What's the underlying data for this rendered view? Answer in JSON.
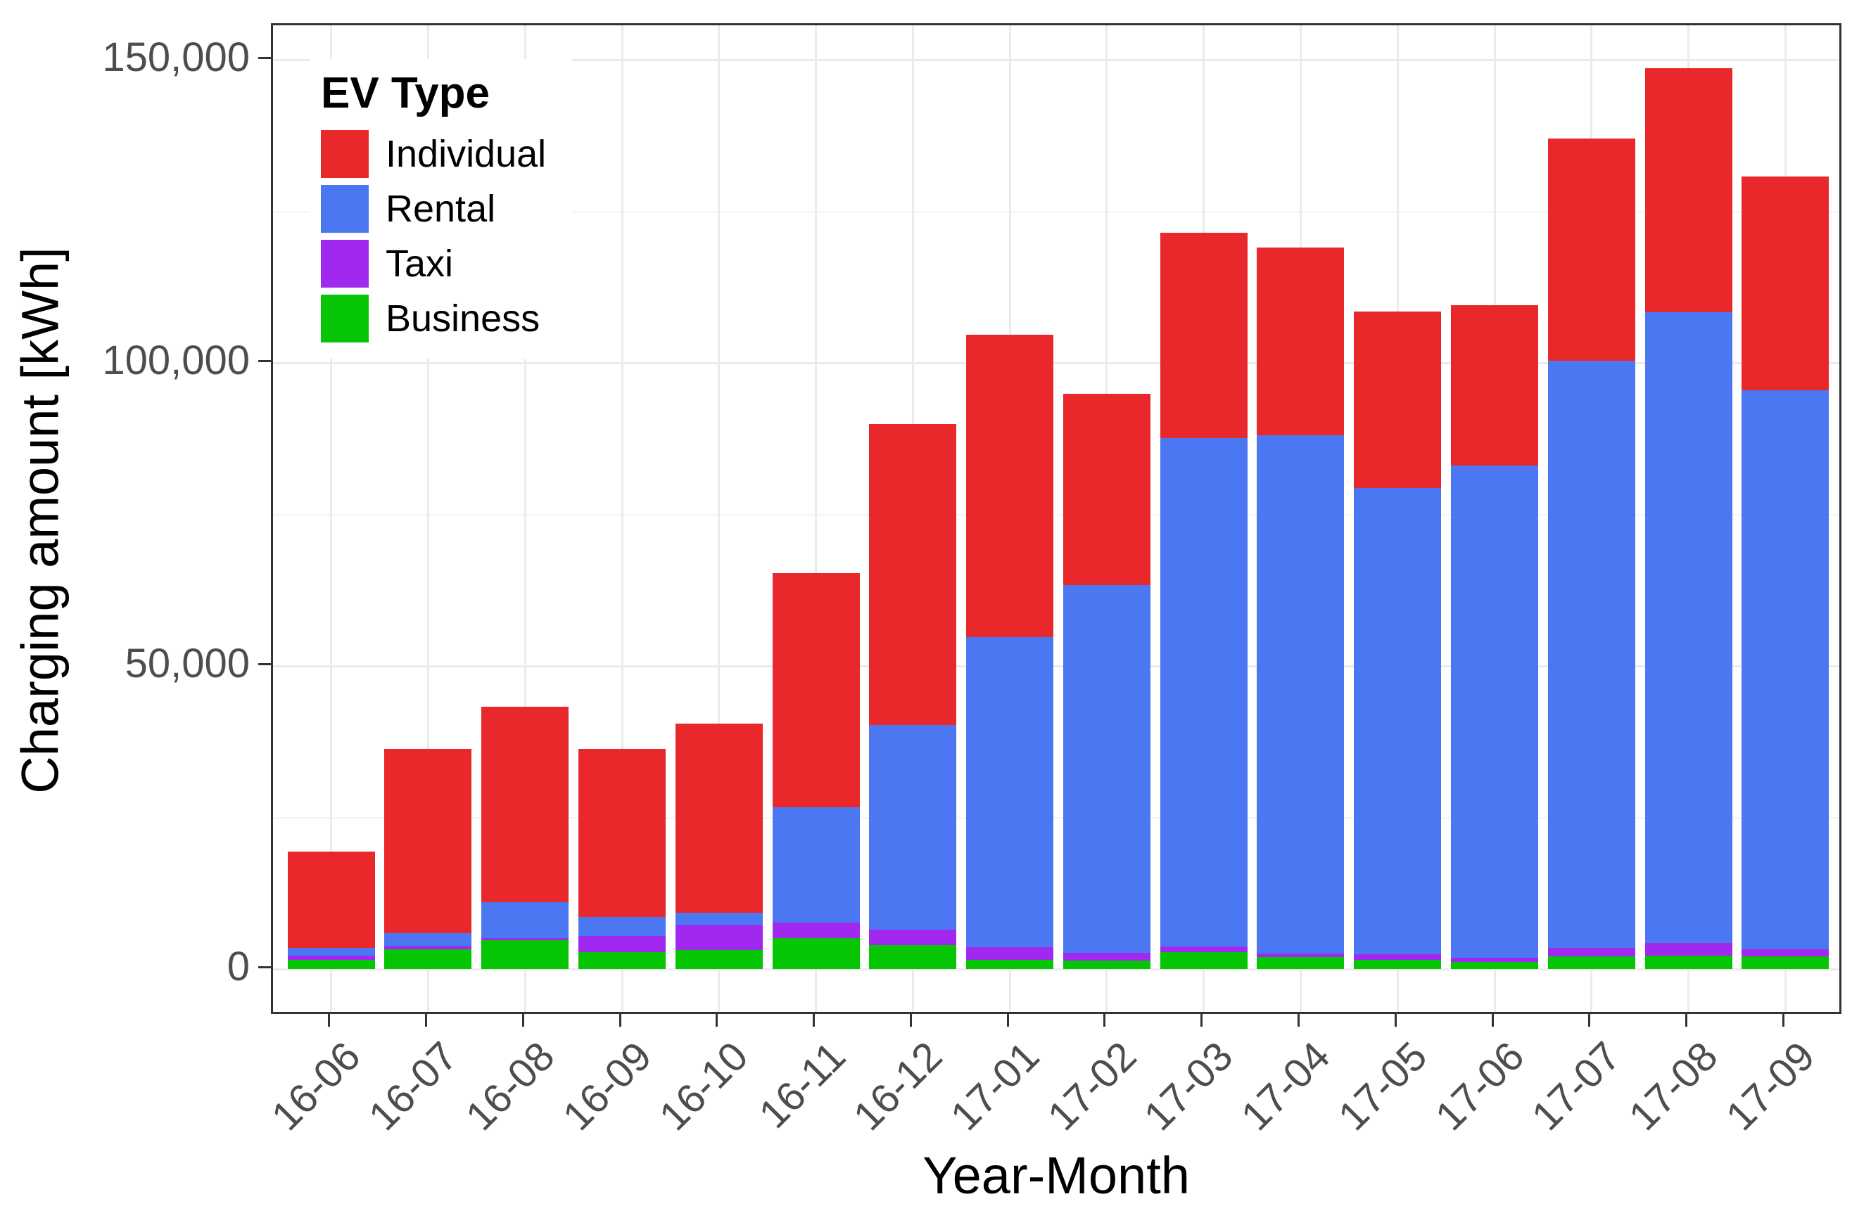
{
  "chart_data": {
    "type": "bar",
    "stacked": true,
    "title": "",
    "xlabel": "Year-Month",
    "ylabel": "Charging amount [kWh]",
    "categories": [
      "16-06",
      "16-07",
      "16-08",
      "16-09",
      "16-10",
      "16-11",
      "16-12",
      "17-01",
      "17-02",
      "17-03",
      "17-04",
      "17-05",
      "17-06",
      "17-07",
      "17-08",
      "17-09"
    ],
    "series": [
      {
        "name": "Business",
        "color": "#05C505",
        "values": [
          1500,
          3200,
          4700,
          2800,
          3100,
          5100,
          3900,
          1500,
          1400,
          2800,
          2000,
          1500,
          1200,
          2100,
          2200,
          2100
        ]
      },
      {
        "name": "Taxi",
        "color": "#A128EE",
        "values": [
          700,
          600,
          400,
          2600,
          4200,
          2600,
          2600,
          2100,
          1300,
          900,
          500,
          900,
          600,
          1400,
          2100,
          1200
        ]
      },
      {
        "name": "Rental",
        "color": "#4B77F3",
        "values": [
          1300,
          2100,
          5900,
          3200,
          2000,
          19000,
          33700,
          51200,
          60600,
          83900,
          85500,
          77000,
          81300,
          96800,
          104100,
          92200
        ]
      },
      {
        "name": "Individual",
        "color": "#E9282C",
        "values": [
          15900,
          30400,
          32300,
          27700,
          31200,
          38600,
          49700,
          49800,
          31600,
          33900,
          31000,
          29100,
          26400,
          36700,
          40200,
          35300
        ]
      }
    ],
    "totals": [
      19400,
      36300,
      43300,
      36300,
      40500,
      65300,
      89900,
      104600,
      94900,
      121500,
      119000,
      108500,
      109500,
      137000,
      148600,
      130800
    ],
    "y_axis": {
      "ticks": [
        {
          "value": 0,
          "label": "0"
        },
        {
          "value": 50000,
          "label": "50,000"
        },
        {
          "value": 100000,
          "label": "100,000"
        },
        {
          "value": 150000,
          "label": "150,000"
        }
      ],
      "minor_ticks": [
        25000,
        75000,
        125000
      ],
      "range": [
        -7700,
        155800
      ],
      "grid": "on"
    },
    "legend": {
      "title": "EV Type",
      "position": "top-left-inside",
      "items": [
        {
          "label": "Individual",
          "color": "#E9282C"
        },
        {
          "label": "Rental",
          "color": "#4B77F3"
        },
        {
          "label": "Taxi",
          "color": "#A128EE"
        },
        {
          "label": "Business",
          "color": "#05C505"
        }
      ]
    }
  }
}
